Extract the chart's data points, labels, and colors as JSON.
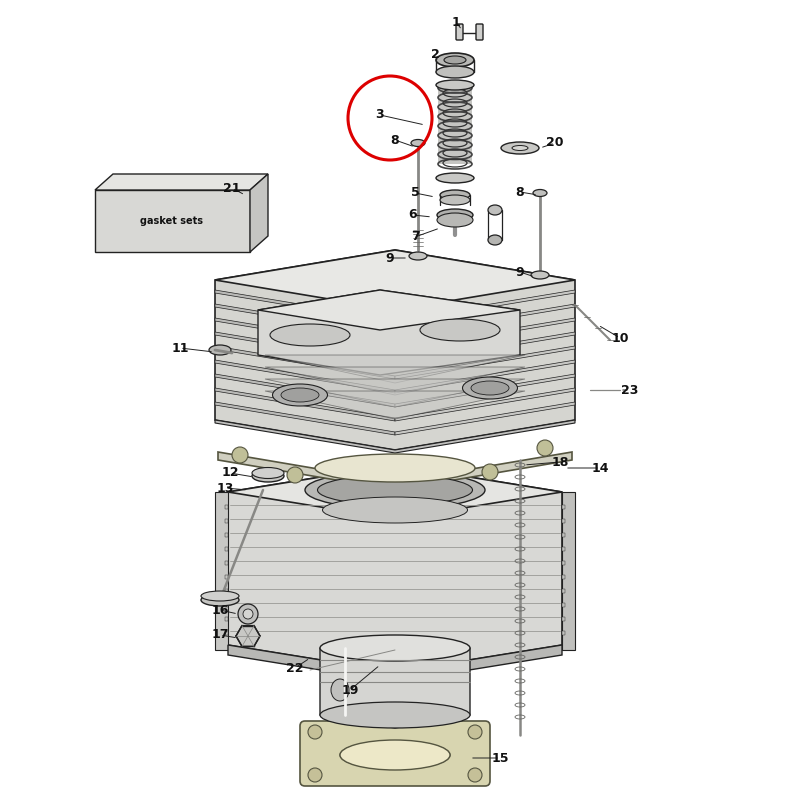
{
  "bg_color": "#ffffff",
  "fig_width": 8.0,
  "fig_height": 8.0,
  "label_fontsize": 9,
  "label_fontweight": "bold",
  "line_color": "#222222",
  "part_fill": "#e8e8e8",
  "part_fill_dark": "#c8c8c8",
  "part_fill_light": "#f0f0f0",
  "circle3_color": "#dd0000",
  "circle3_lw": 2.2
}
